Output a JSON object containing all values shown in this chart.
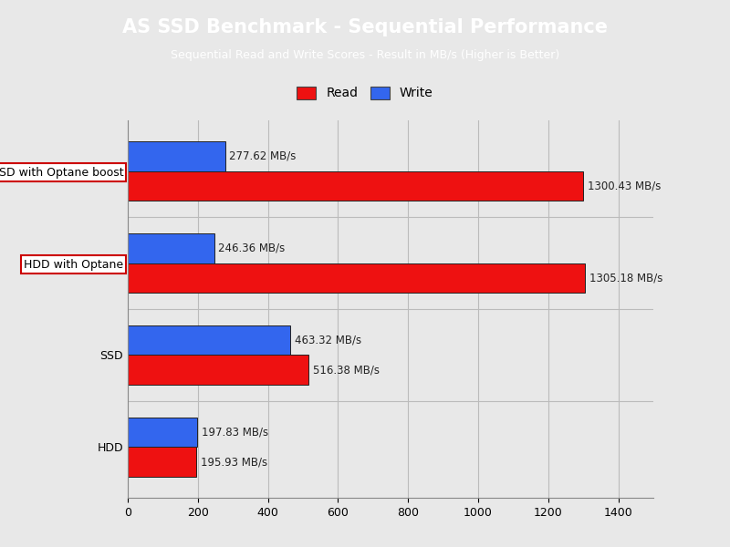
{
  "title": "AS SSD Benchmark - Sequential Performance",
  "subtitle": "Sequential Read and Write Scores - Result in MB/s (Higher is Better)",
  "title_bg_color": "#1AABEE",
  "title_text_color": "#FFFFFF",
  "bg_color": "#E8E8E8",
  "plot_bg_color": "#E8E8E8",
  "categories": [
    "SSD with Optane boost",
    "HDD with Optane",
    "SSD",
    "HDD"
  ],
  "read_values": [
    1300.43,
    1305.18,
    516.38,
    195.93
  ],
  "write_values": [
    277.62,
    246.36,
    463.32,
    197.83
  ],
  "read_color": "#EE1111",
  "write_color": "#3366EE",
  "bar_edge_color": "#222222",
  "xlim": [
    0,
    1500
  ],
  "xticks": [
    0,
    200,
    400,
    600,
    800,
    1000,
    1200,
    1400
  ],
  "bar_height": 0.32,
  "label_fontsize": 8.5,
  "ytick_fontsize": 9,
  "xtick_fontsize": 9,
  "title_fontsize": 15,
  "subtitle_fontsize": 9,
  "legend_fontsize": 10,
  "highlighted_labels": [
    "SSD with Optane boost",
    "HDD with Optane"
  ],
  "highlight_box_color": "#FFFFFF",
  "highlight_box_edge_color": "#CC0000"
}
